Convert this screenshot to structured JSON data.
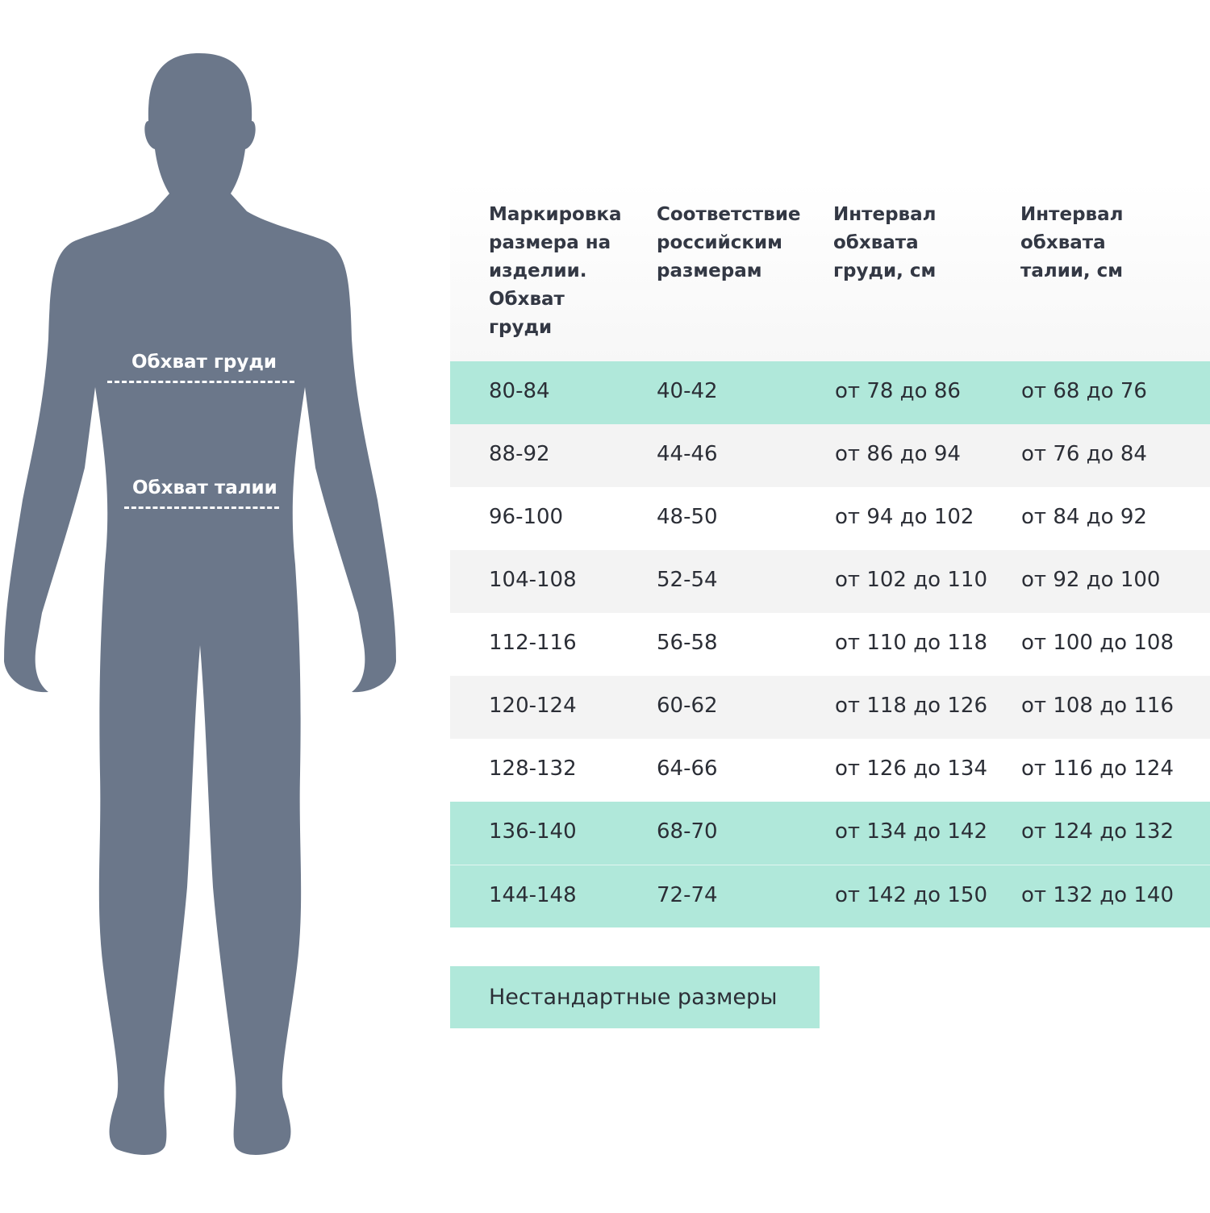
{
  "figure": {
    "chest_label": "Обхват груди",
    "waist_label": "Обхват талии",
    "silhouette_color": "#6b778a"
  },
  "table": {
    "headers": [
      "Маркировка размера на изделии. Обхват груди",
      "Соответствие российским размерам",
      "Интервал обхвата груди, см",
      "Интервал обхвата талии, см"
    ],
    "rows": [
      {
        "style": "teal",
        "cells": [
          "80-84",
          "40-42",
          "от 78 до 86",
          "от 68 до 76"
        ]
      },
      {
        "style": "gray",
        "cells": [
          "88-92",
          "44-46",
          "от 86 до 94",
          "от 76 до 84"
        ]
      },
      {
        "style": "white",
        "cells": [
          "96-100",
          "48-50",
          "от 94 до 102",
          "от 84 до 92"
        ]
      },
      {
        "style": "gray",
        "cells": [
          "104-108",
          "52-54",
          "от 102 до 110",
          "от 92 до 100"
        ]
      },
      {
        "style": "white",
        "cells": [
          "112-116",
          "56-58",
          "от 110 до 118",
          "от 100 до 108"
        ]
      },
      {
        "style": "gray",
        "cells": [
          "120-124",
          "60-62",
          "от 118 до 126",
          "от 108 до 116"
        ]
      },
      {
        "style": "white",
        "cells": [
          "128-132",
          "64-66",
          "от 126 до 134",
          "от 116 до 124"
        ]
      },
      {
        "style": "teal",
        "cells": [
          "136-140",
          "68-70",
          "от 134 до 142",
          "от 124 до 132"
        ]
      },
      {
        "style": "teal",
        "cells": [
          "144-148",
          "72-74",
          "от 142 до 150",
          "от 132 до 140"
        ]
      }
    ]
  },
  "button": {
    "label": "Нестандартные размеры"
  },
  "colors": {
    "accent": "#b0e8da",
    "stripe": "#f3f3f3"
  }
}
